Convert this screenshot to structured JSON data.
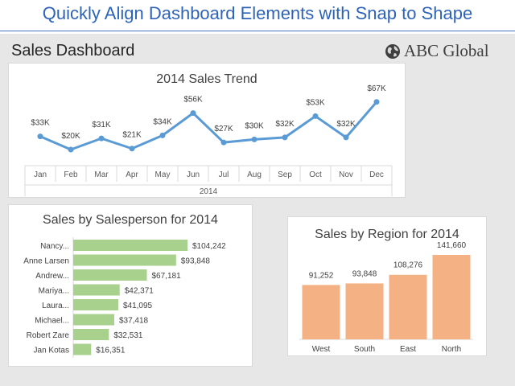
{
  "banner": {
    "title": "Quickly Align Dashboard Elements with Snap to Shape"
  },
  "dashboard": {
    "title": "Sales Dashboard",
    "logo_text": "ABC Global",
    "logo_icon": "globe-icon"
  },
  "colors": {
    "banner": "#2e63b8",
    "line": "#5b9bd5",
    "hbar": "#a9d18e",
    "vbar": "#f4b183",
    "background": "#e7e7e7"
  },
  "chart_data": [
    {
      "type": "line",
      "title": "2014 Sales Trend",
      "xlabel": "2014",
      "categories": [
        "Jan",
        "Feb",
        "Mar",
        "Apr",
        "May",
        "Jun",
        "Jul",
        "Aug",
        "Sep",
        "Oct",
        "Nov",
        "Dec"
      ],
      "values": [
        33,
        20,
        31,
        21,
        34,
        56,
        27,
        30,
        32,
        53,
        32,
        67
      ],
      "labels": [
        "$33K",
        "$20K",
        "$31K",
        "$21K",
        "$34K",
        "$56K",
        "$27K",
        "$30K",
        "$32K",
        "$53K",
        "$32K",
        "$67K"
      ],
      "grid": false
    },
    {
      "type": "bar",
      "orientation": "horizontal",
      "title": "Sales by Salesperson for 2014",
      "categories": [
        "Nancy...",
        "Anne Larsen",
        "Andrew...",
        "Mariya...",
        "Laura...",
        "Michael...",
        "Robert Zare",
        "Jan Kotas"
      ],
      "values": [
        104242,
        93848,
        67181,
        42371,
        41095,
        37418,
        32531,
        16351
      ],
      "labels": [
        "$104,242",
        "$93,848",
        "$67,181",
        "$42,371",
        "$41,095",
        "$37,418",
        "$32,531",
        "$16,351"
      ]
    },
    {
      "type": "bar",
      "title": "Sales by Region for 2014",
      "categories": [
        "West",
        "South",
        "East",
        "North"
      ],
      "values": [
        91252,
        93848,
        108276,
        141660
      ],
      "labels": [
        "91,252",
        "93,848",
        "108,276",
        "141,660"
      ]
    }
  ]
}
